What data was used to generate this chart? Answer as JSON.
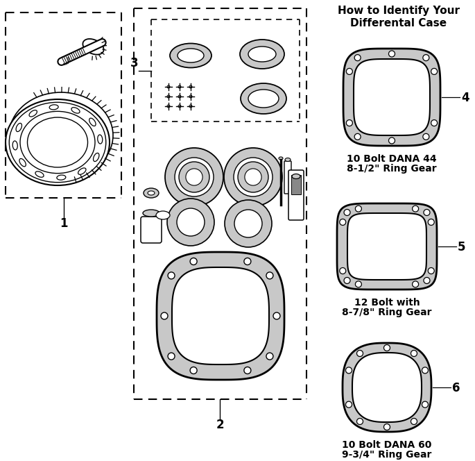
{
  "title_line1": "How to Identify Your",
  "title_line2": "Differental Case",
  "bg_color": "#ffffff",
  "line_color": "#000000",
  "gray_fill": "#c8c8c8",
  "label1": "1",
  "label2": "2",
  "label3": "3",
  "label4": "4",
  "label5": "5",
  "label6": "6",
  "text4a": "10 Bolt DANA 44",
  "text4b": "8-1/2\" Ring Gear",
  "text5a": "12 Bolt with",
  "text5b": "8-7/8\" Ring Gear",
  "text6a": "10 Bolt DANA 60",
  "text6b": "9-3/4\" Ring Gear"
}
